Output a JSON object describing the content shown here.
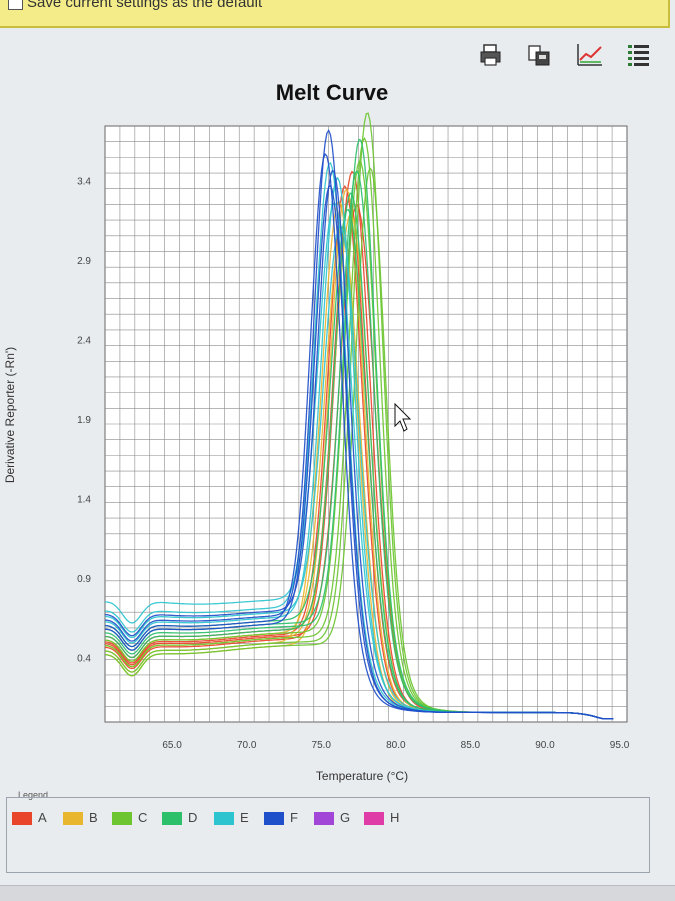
{
  "settings": {
    "default_checkbox_label": "Save current settings as the default"
  },
  "toolbar": {
    "icons": [
      "print-icon",
      "export-icon",
      "plot-settings-icon",
      "list-icon"
    ]
  },
  "chart_data": {
    "type": "line",
    "title": "Melt Curve",
    "xlabel": "Temperature (°C)",
    "ylabel": "Derivative Reporter (-Rn')",
    "xlim": [
      60.5,
      95.5
    ],
    "ylim": [
      0.0,
      3.75
    ],
    "xticks": [
      "65.0",
      "70.0",
      "75.0",
      "80.0",
      "85.0",
      "90.0",
      "95.0"
    ],
    "yticks": [
      "0.4",
      "0.9",
      "1.4",
      "1.9",
      "2.4",
      "2.9",
      "3.4"
    ],
    "grid": true,
    "legend_position": "bottom",
    "series": [
      {
        "name": "A",
        "color": "#e8452a",
        "curves": [
          {
            "tm": 76.6,
            "peak": 3.29,
            "base": 0.44,
            "sigma": 1.55
          },
          {
            "tm": 77.1,
            "peak": 3.38,
            "base": 0.41,
            "sigma": 1.6
          },
          {
            "tm": 76.9,
            "peak": 3.21,
            "base": 0.47,
            "sigma": 1.5
          },
          {
            "tm": 77.4,
            "peak": 3.17,
            "base": 0.43,
            "sigma": 1.62
          }
        ]
      },
      {
        "name": "B",
        "color": "#e9b62f",
        "curves": [
          {
            "tm": 76.2,
            "peak": 3.19,
            "base": 0.39,
            "sigma": 1.6
          },
          {
            "tm": 76.7,
            "peak": 3.27,
            "base": 0.42,
            "sigma": 1.55
          },
          {
            "tm": 77.0,
            "peak": 3.11,
            "base": 0.37,
            "sigma": 1.65
          },
          {
            "tm": 76.4,
            "peak": 3.03,
            "base": 0.45,
            "sigma": 1.58
          }
        ]
      },
      {
        "name": "C",
        "color": "#6cc531",
        "curves": [
          {
            "tm": 78.1,
            "peak": 3.75,
            "base": 0.39,
            "sigma": 1.4
          },
          {
            "tm": 77.9,
            "peak": 3.59,
            "base": 0.42,
            "sigma": 1.42
          },
          {
            "tm": 77.6,
            "peak": 3.45,
            "base": 0.45,
            "sigma": 1.45
          },
          {
            "tm": 78.3,
            "peak": 3.4,
            "base": 0.37,
            "sigma": 1.38
          }
        ]
      },
      {
        "name": "D",
        "color": "#2cc06a",
        "curves": [
          {
            "tm": 77.4,
            "peak": 3.39,
            "base": 0.51,
            "sigma": 1.5
          },
          {
            "tm": 77.0,
            "peak": 3.25,
            "base": 0.47,
            "sigma": 1.55
          },
          {
            "tm": 76.8,
            "peak": 3.15,
            "base": 0.53,
            "sigma": 1.6
          },
          {
            "tm": 77.6,
            "peak": 3.59,
            "base": 0.49,
            "sigma": 1.45
          }
        ]
      },
      {
        "name": "E",
        "color": "#2ec4cf",
        "curves": [
          {
            "tm": 75.6,
            "peak": 3.45,
            "base": 0.61,
            "sigma": 1.45
          },
          {
            "tm": 76.1,
            "peak": 3.35,
            "base": 0.55,
            "sigma": 1.5
          },
          {
            "tm": 75.9,
            "peak": 3.2,
            "base": 0.66,
            "sigma": 1.55
          },
          {
            "tm": 76.3,
            "peak": 3.05,
            "base": 0.58,
            "sigma": 1.58
          }
        ]
      },
      {
        "name": "F",
        "color": "#1f4fc9",
        "curves": [
          {
            "tm": 75.5,
            "peak": 3.65,
            "base": 0.56,
            "sigma": 1.4
          },
          {
            "tm": 75.3,
            "peak": 3.5,
            "base": 0.53,
            "sigma": 1.42
          },
          {
            "tm": 75.8,
            "peak": 3.4,
            "base": 0.59,
            "sigma": 1.45
          },
          {
            "tm": 75.6,
            "peak": 3.3,
            "base": 0.51,
            "sigma": 1.47
          }
        ]
      },
      {
        "name": "G",
        "color": "#a246d8",
        "curves": []
      },
      {
        "name": "H",
        "color": "#e03ca8",
        "curves": []
      }
    ]
  }
}
